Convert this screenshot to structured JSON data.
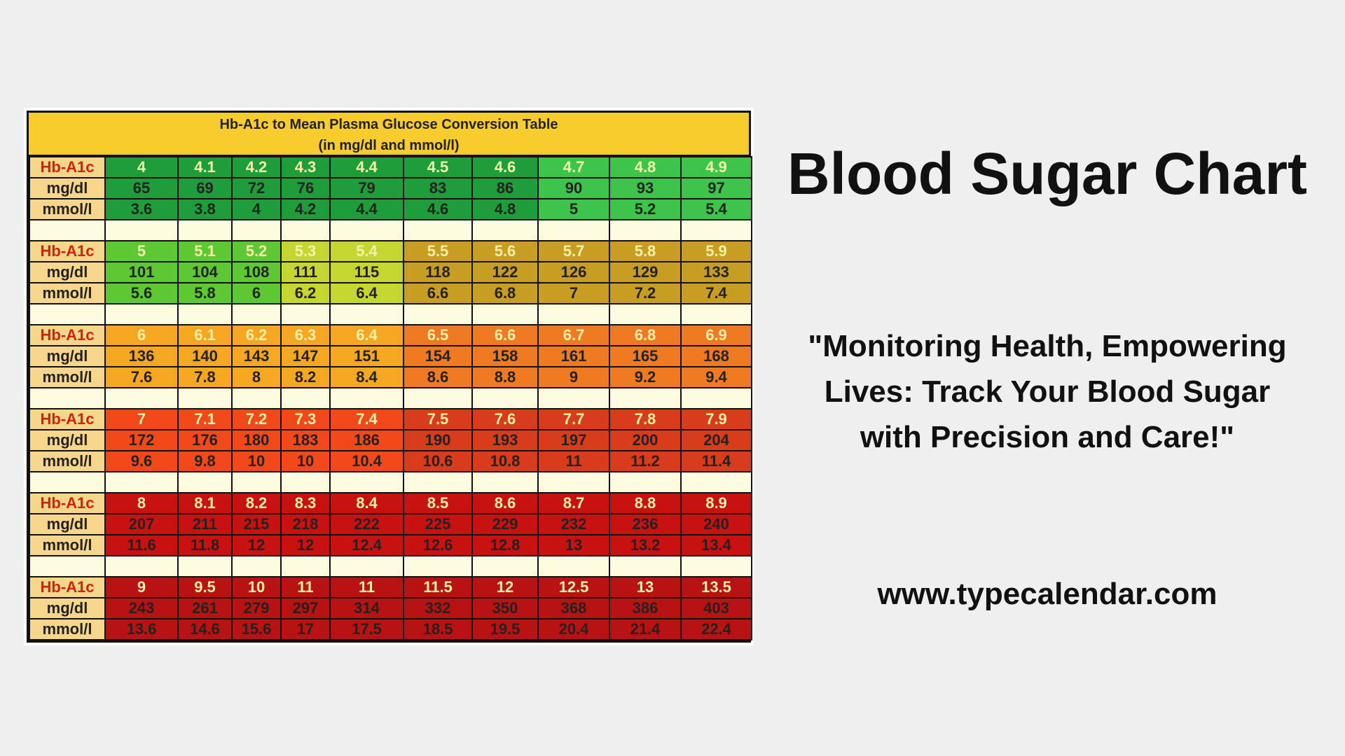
{
  "table": {
    "title": "Hb-A1c to Mean Plasma Glucose Conversion Table",
    "subtitle": "(in mg/dl and mmol/l)",
    "row_labels": [
      "Hb-A1c",
      "mg/dl",
      "mmol/l"
    ],
    "label_color": "#f5d68a",
    "hba1c_label_color": "#d42010",
    "blank_row_color": "#fdfbe0",
    "header_color": "#f8cc2c",
    "groups": [
      {
        "hba1c": [
          "4",
          "4.1",
          "4.2",
          "4.3",
          "4.4",
          "4.5",
          "4.6",
          "4.7",
          "4.8",
          "4.9"
        ],
        "mgdl": [
          "65",
          "69",
          "72",
          "76",
          "79",
          "83",
          "86",
          "90",
          "93",
          "97"
        ],
        "mmol": [
          "3.6",
          "3.8",
          "4",
          "4.2",
          "4.4",
          "4.6",
          "4.8",
          "5",
          "5.2",
          "5.4"
        ],
        "colors": [
          "#1f9d3b",
          "#1f9d3b",
          "#1f9d3b",
          "#1f9d3b",
          "#1f9d3b",
          "#1f9d3b",
          "#1f9d3b",
          "#3cc54a",
          "#3cc54a",
          "#3cc54a"
        ]
      },
      {
        "hba1c": [
          "5",
          "5.1",
          "5.2",
          "5.3",
          "5.4",
          "5.5",
          "5.6",
          "5.7",
          "5.8",
          "5.9"
        ],
        "mgdl": [
          "101",
          "104",
          "108",
          "111",
          "115",
          "118",
          "122",
          "126",
          "129",
          "133"
        ],
        "mmol": [
          "5.6",
          "5.8",
          "6",
          "6.2",
          "6.4",
          "6.6",
          "6.8",
          "7",
          "7.2",
          "7.4"
        ],
        "colors": [
          "#5ec832",
          "#5ec832",
          "#5ec832",
          "#c6d630",
          "#c6d630",
          "#c79d22",
          "#c79d22",
          "#c79d22",
          "#c79d22",
          "#c79d22"
        ]
      },
      {
        "hba1c": [
          "6",
          "6.1",
          "6.2",
          "6.3",
          "6.4",
          "6.5",
          "6.6",
          "6.7",
          "6.8",
          "6.9"
        ],
        "mgdl": [
          "136",
          "140",
          "143",
          "147",
          "151",
          "154",
          "158",
          "161",
          "165",
          "168"
        ],
        "mmol": [
          "7.6",
          "7.8",
          "8",
          "8.2",
          "8.4",
          "8.6",
          "8.8",
          "9",
          "9.2",
          "9.4"
        ],
        "colors": [
          "#f5a722",
          "#f5a722",
          "#f5a722",
          "#f5a722",
          "#f5a722",
          "#f07a22",
          "#f07a22",
          "#f07a22",
          "#f07a22",
          "#f07a22"
        ]
      },
      {
        "hba1c": [
          "7",
          "7.1",
          "7.2",
          "7.3",
          "7.4",
          "7.5",
          "7.6",
          "7.7",
          "7.8",
          "7.9"
        ],
        "mgdl": [
          "172",
          "176",
          "180",
          "183",
          "186",
          "190",
          "193",
          "197",
          "200",
          "204"
        ],
        "mmol": [
          "9.6",
          "9.8",
          "10",
          "10",
          "10.4",
          "10.6",
          "10.8",
          "11",
          "11.2",
          "11.4"
        ],
        "colors": [
          "#f2481a",
          "#f2481a",
          "#f2481a",
          "#f2481a",
          "#f2481a",
          "#d83c1a",
          "#d83c1a",
          "#d83c1a",
          "#d83c1a",
          "#d83c1a"
        ]
      },
      {
        "hba1c": [
          "8",
          "8.1",
          "8.2",
          "8.3",
          "8.4",
          "8.5",
          "8.6",
          "8.7",
          "8.8",
          "8.9"
        ],
        "mgdl": [
          "207",
          "211",
          "215",
          "218",
          "222",
          "225",
          "229",
          "232",
          "236",
          "240"
        ],
        "mmol": [
          "11.6",
          "11.8",
          "12",
          "12",
          "12.4",
          "12.6",
          "12.8",
          "13",
          "13.2",
          "13.4"
        ],
        "colors": [
          "#c81212",
          "#c81212",
          "#c81212",
          "#c81212",
          "#c81212",
          "#c81212",
          "#c81212",
          "#c81212",
          "#c81212",
          "#c81212"
        ]
      },
      {
        "hba1c": [
          "9",
          "9.5",
          "10",
          "11",
          "11",
          "11.5",
          "12",
          "12.5",
          "13",
          "13.5"
        ],
        "mgdl": [
          "243",
          "261",
          "279",
          "297",
          "314",
          "332",
          "350",
          "368",
          "386",
          "403"
        ],
        "mmol": [
          "13.6",
          "14.6",
          "15.6",
          "17",
          "17.5",
          "18.5",
          "19.5",
          "20.4",
          "21.4",
          "22.4"
        ],
        "colors": [
          "#b81212",
          "#b81212",
          "#b81212",
          "#b81212",
          "#b81212",
          "#b81212",
          "#b81212",
          "#b81212",
          "#b81212",
          "#b81212"
        ]
      }
    ]
  },
  "headline": "Blood Sugar Chart",
  "tagline_lines": [
    "\"Monitoring Health, Empowering",
    "Lives: Track Your Blood Sugar",
    "with Precision and Care!\""
  ],
  "url": "www.typecalendar.com"
}
